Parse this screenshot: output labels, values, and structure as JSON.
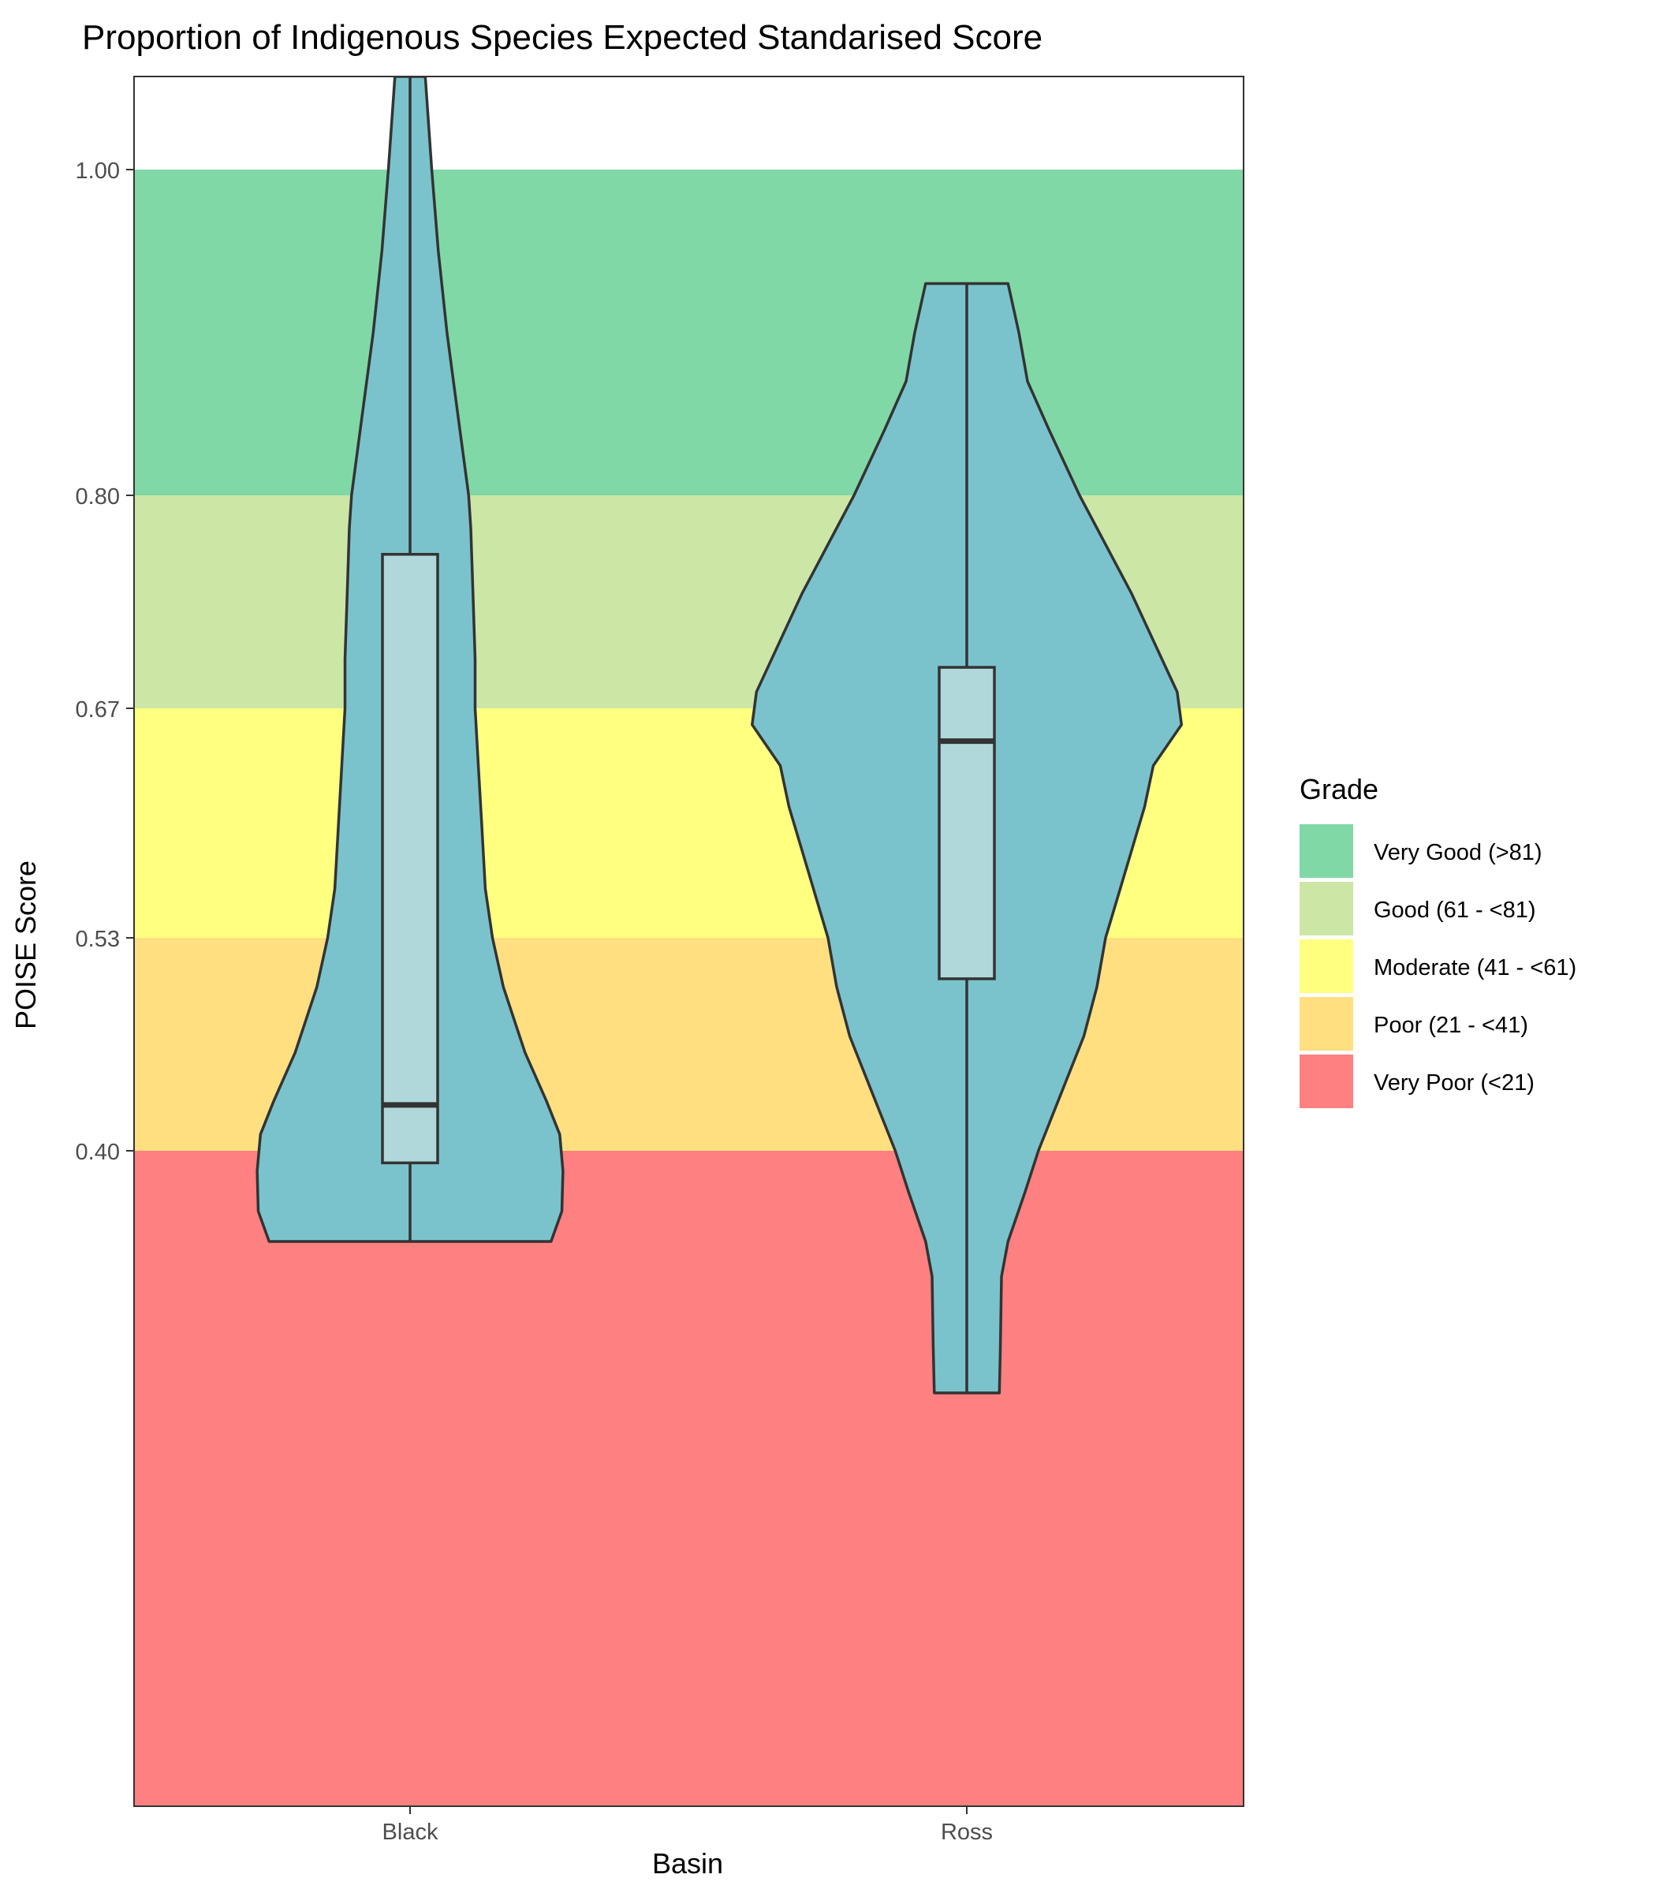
{
  "chart_data": {
    "type": "violin",
    "title": "Proportion of Indigenous Species Expected Standarised Score",
    "xlabel": "Basin",
    "ylabel": "POISE Score",
    "categories": [
      "Black",
      "Ross"
    ],
    "y_scale": "nonlinear (grade breaks evenly placed)",
    "y_ticks": [
      {
        "value": 1.0,
        "label": "1.00"
      },
      {
        "value": 0.8,
        "label": "0.80"
      },
      {
        "value": 0.67,
        "label": "0.67"
      },
      {
        "value": 0.53,
        "label": "0.53"
      },
      {
        "value": 0.4,
        "label": "0.40"
      }
    ],
    "grade_bands": [
      {
        "name": "Very Good (>81)",
        "from": 0.8,
        "to": 1.0,
        "color": "#80D8A6"
      },
      {
        "name": "Good (61 - <81)",
        "from": 0.67,
        "to": 0.8,
        "color": "#CCE6A6"
      },
      {
        "name": "Moderate (41 - <61)",
        "from": 0.53,
        "to": 0.67,
        "color": "#FFFF80"
      },
      {
        "name": "Poor (21 - <41)",
        "from": 0.4,
        "to": 0.53,
        "color": "#FFDF80"
      },
      {
        "name": "Very Poor (<21)",
        "from": 0.0,
        "to": 0.4,
        "color": "#FF8080"
      }
    ],
    "legend": {
      "title": "Grade",
      "position": "right"
    },
    "violin_fill": "#7BC3CC",
    "box_fill": "#B0D7DA",
    "series": [
      {
        "category": "Black",
        "min": 0.355,
        "q1": 0.394,
        "median": 0.428,
        "q3": 0.764,
        "max": 1.06,
        "density": [
          [
            0.355,
            0.65
          ],
          [
            0.37,
            0.7
          ],
          [
            0.39,
            0.705
          ],
          [
            0.41,
            0.69
          ],
          [
            0.43,
            0.63
          ],
          [
            0.46,
            0.53
          ],
          [
            0.5,
            0.43
          ],
          [
            0.53,
            0.38
          ],
          [
            0.56,
            0.347
          ],
          [
            0.6,
            0.33
          ],
          [
            0.635,
            0.315
          ],
          [
            0.67,
            0.3
          ],
          [
            0.7,
            0.3
          ],
          [
            0.74,
            0.29
          ],
          [
            0.78,
            0.28
          ],
          [
            0.8,
            0.27
          ],
          [
            0.85,
            0.22
          ],
          [
            0.9,
            0.17
          ],
          [
            0.95,
            0.13
          ],
          [
            1.0,
            0.1
          ],
          [
            1.06,
            0.07
          ]
        ]
      },
      {
        "category": "Ross",
        "min": 0.29,
        "q1": 0.505,
        "median": 0.65,
        "q3": 0.695,
        "max": 0.93,
        "density": [
          [
            0.29,
            0.15
          ],
          [
            0.31,
            0.155
          ],
          [
            0.34,
            0.16
          ],
          [
            0.355,
            0.19
          ],
          [
            0.38,
            0.27
          ],
          [
            0.4,
            0.33
          ],
          [
            0.43,
            0.42
          ],
          [
            0.47,
            0.54
          ],
          [
            0.5,
            0.6
          ],
          [
            0.53,
            0.64
          ],
          [
            0.57,
            0.73
          ],
          [
            0.61,
            0.82
          ],
          [
            0.635,
            0.86
          ],
          [
            0.66,
            0.99
          ],
          [
            0.68,
            0.97
          ],
          [
            0.7,
            0.9
          ],
          [
            0.74,
            0.76
          ],
          [
            0.78,
            0.6
          ],
          [
            0.8,
            0.52
          ],
          [
            0.84,
            0.38
          ],
          [
            0.87,
            0.28
          ],
          [
            0.9,
            0.24
          ],
          [
            0.93,
            0.19
          ]
        ]
      }
    ]
  }
}
